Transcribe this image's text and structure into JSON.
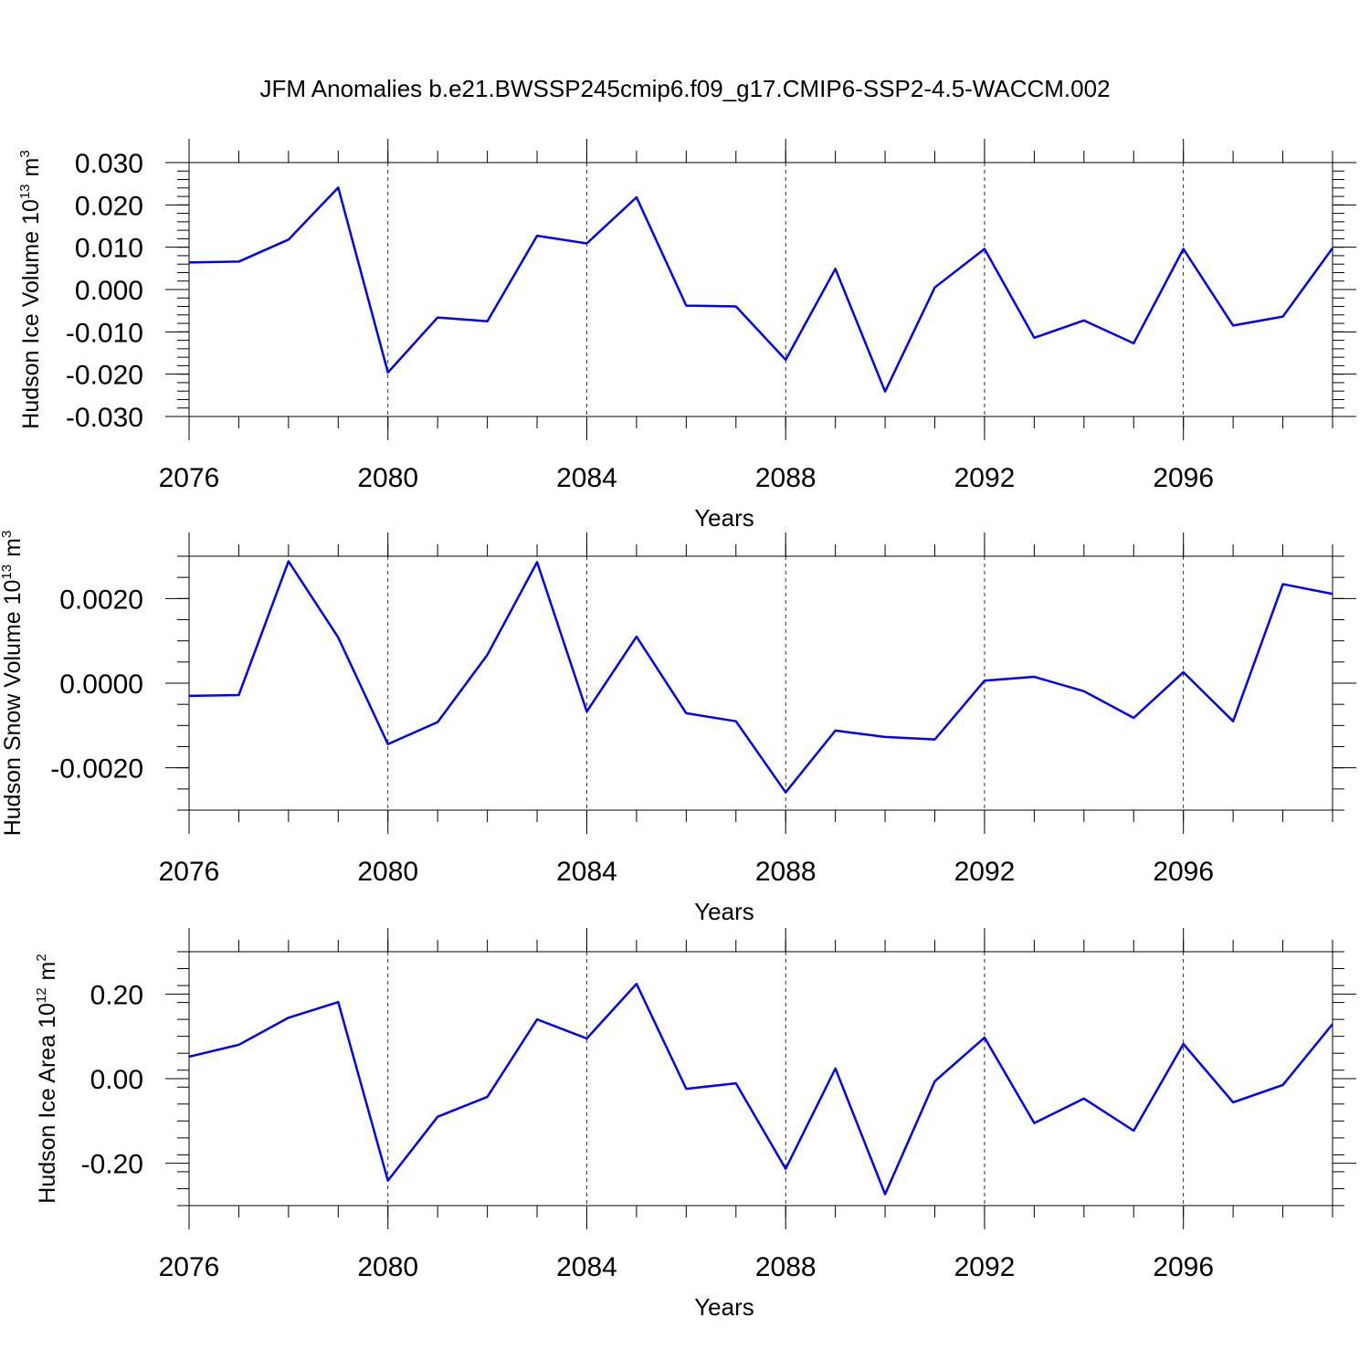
{
  "title": "JFM Anomalies b.e21.BWSSP245cmip6.f09_g17.CMIP6-SSP2-4.5-WACCM.002",
  "chart_data": [
    {
      "type": "line",
      "ylabel": {
        "text": "Hudson Ice Volume 10",
        "exponent": "13",
        "unit": "m",
        "unit_exponent": "3"
      },
      "xlabel": "Years",
      "x": [
        2076,
        2077,
        2078,
        2079,
        2080,
        2081,
        2082,
        2083,
        2084,
        2085,
        2086,
        2087,
        2088,
        2089,
        2090,
        2091,
        2092,
        2093,
        2094,
        2095,
        2096,
        2097,
        2098,
        2099
      ],
      "series": [
        {
          "color": "#0000ff",
          "values": [
            0.0064,
            0.0066,
            0.0118,
            0.0241,
            -0.0196,
            -0.0066,
            -0.0075,
            0.0127,
            0.0109,
            0.0218,
            -0.0038,
            -0.004,
            -0.0166,
            0.0049,
            -0.0241,
            0.0005,
            0.0096,
            -0.0114,
            -0.0073,
            -0.0127,
            0.0096,
            -0.0085,
            -0.0064,
            0.0098
          ]
        }
      ],
      "xlim": [
        2076,
        2099
      ],
      "xticks": [
        2076,
        2080,
        2084,
        2088,
        2092,
        2096
      ],
      "ylim": [
        -0.03,
        0.03
      ],
      "yticks": [
        {
          "value": -0.03,
          "label": "-0.030"
        },
        {
          "value": -0.02,
          "label": "-0.020"
        },
        {
          "value": -0.01,
          "label": "-0.010"
        },
        {
          "value": 0,
          "label": "0.000"
        },
        {
          "value": 0.01,
          "label": "0.010"
        },
        {
          "value": 0.02,
          "label": "0.020"
        },
        {
          "value": 0.03,
          "label": "0.030"
        }
      ],
      "y_minor_per_major": 5,
      "xgrid": true
    },
    {
      "type": "line",
      "ylabel": {
        "text": "Hudson Snow Volume 10",
        "exponent": "13",
        "unit": "m",
        "unit_exponent": "3"
      },
      "xlabel": "Years",
      "x": [
        2076,
        2077,
        2078,
        2079,
        2080,
        2081,
        2082,
        2083,
        2084,
        2085,
        2086,
        2087,
        2088,
        2089,
        2090,
        2091,
        2092,
        2093,
        2094,
        2095,
        2096,
        2097,
        2098,
        2099
      ],
      "series": [
        {
          "color": "#0000ff",
          "values": [
            -0.0003,
            -0.00028,
            0.00288,
            0.00108,
            -0.00144,
            -0.00092,
            0.00067,
            0.00286,
            -0.00067,
            0.0011,
            -0.00071,
            -0.0009,
            -0.00258,
            -0.00112,
            -0.00127,
            -0.00133,
            6e-05,
            0.00015,
            -0.00019,
            -0.00082,
            0.00026,
            -0.0009,
            0.00234,
            0.00211
          ]
        }
      ],
      "xlim": [
        2076,
        2099
      ],
      "xticks": [
        2076,
        2080,
        2084,
        2088,
        2092,
        2096
      ],
      "ylim": [
        -0.003,
        0.003
      ],
      "yticks": [
        {
          "value": -0.002,
          "label": "-0.0020"
        },
        {
          "value": 0,
          "label": "0.0000"
        },
        {
          "value": 0.002,
          "label": "0.0020"
        }
      ],
      "y_minor_per_major": 4,
      "xgrid": true
    },
    {
      "type": "line",
      "ylabel": {
        "text": "Hudson Ice Area 10",
        "exponent": "12",
        "unit": "m",
        "unit_exponent": "2"
      },
      "xlabel": "Years",
      "x": [
        2076,
        2077,
        2078,
        2079,
        2080,
        2081,
        2082,
        2083,
        2084,
        2085,
        2086,
        2087,
        2088,
        2089,
        2090,
        2091,
        2092,
        2093,
        2094,
        2095,
        2096,
        2097,
        2098,
        2099
      ],
      "series": [
        {
          "color": "#0000ff",
          "values": [
            0.052,
            0.08,
            0.144,
            0.181,
            -0.241,
            -0.09,
            -0.043,
            0.14,
            0.095,
            0.224,
            -0.024,
            -0.011,
            -0.213,
            0.024,
            -0.273,
            -0.006,
            0.097,
            -0.105,
            -0.047,
            -0.123,
            0.082,
            -0.056,
            -0.015,
            0.129
          ]
        }
      ],
      "xlim": [
        2076,
        2099
      ],
      "xticks": [
        2076,
        2080,
        2084,
        2088,
        2092,
        2096
      ],
      "ylim": [
        -0.3,
        0.3
      ],
      "yticks": [
        {
          "value": -0.2,
          "label": "-0.20"
        },
        {
          "value": 0,
          "label": "0.00"
        },
        {
          "value": 0.2,
          "label": "0.20"
        }
      ],
      "y_minor_per_major": 5,
      "xgrid": true
    }
  ]
}
